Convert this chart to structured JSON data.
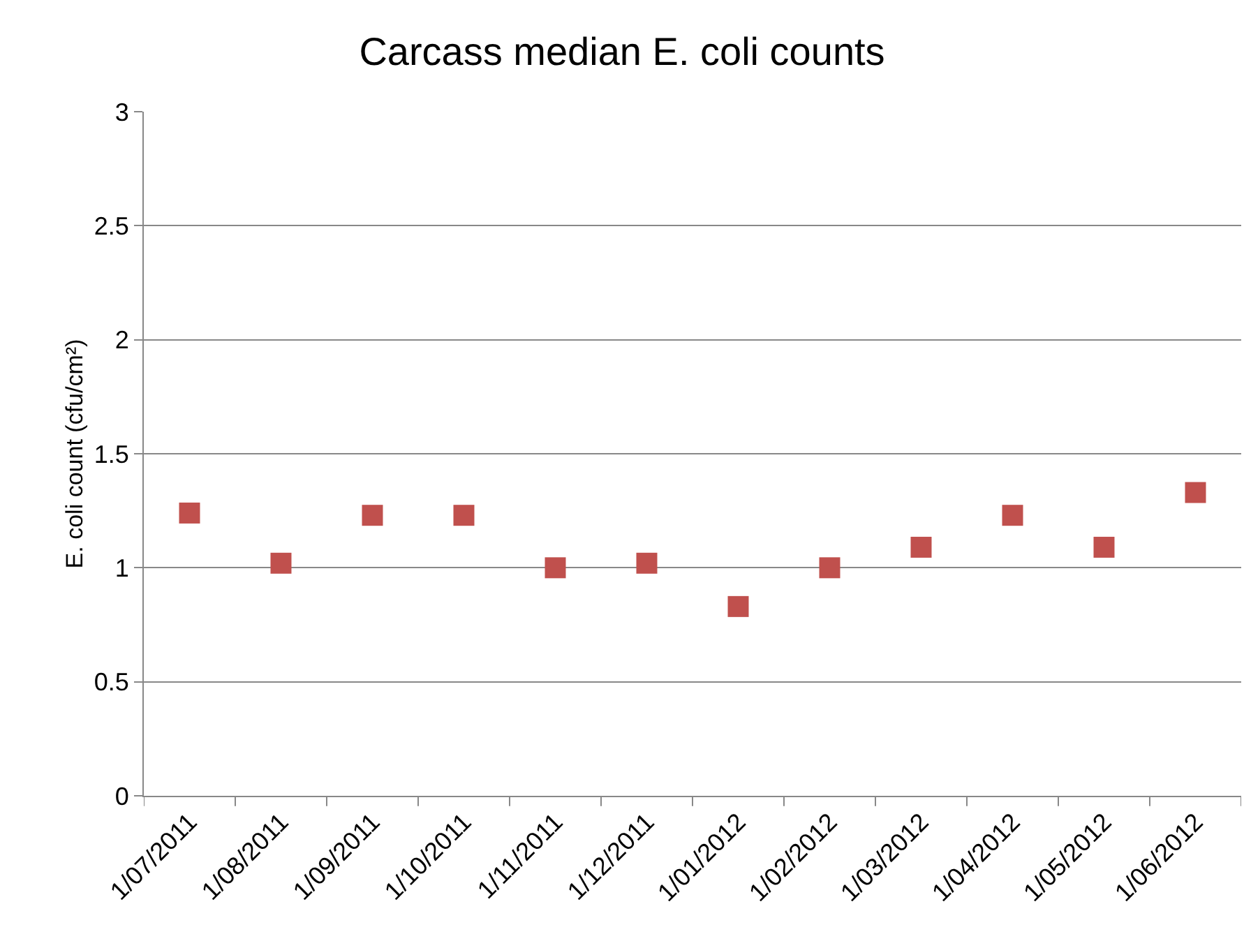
{
  "chart_data": {
    "type": "scatter",
    "title": "Carcass median E. coli counts",
    "ylabel": "E. coli count (cfu/cm²)",
    "categories": [
      "1/07/2011",
      "1/08/2011",
      "1/09/2011",
      "1/10/2011",
      "1/11/2011",
      "1/12/2011",
      "1/01/2012",
      "1/02/2012",
      "1/03/2012",
      "1/04/2012",
      "1/05/2012",
      "1/06/2012"
    ],
    "values": [
      1.24,
      1.02,
      1.23,
      1.23,
      1.0,
      1.02,
      0.83,
      1.0,
      1.09,
      1.23,
      1.09,
      1.33
    ],
    "color": "#c0504d",
    "marker": "square",
    "ylim": [
      0,
      3
    ],
    "yticks": [
      0,
      0.5,
      1,
      1.5,
      2,
      2.5,
      3
    ],
    "grid": "y"
  }
}
